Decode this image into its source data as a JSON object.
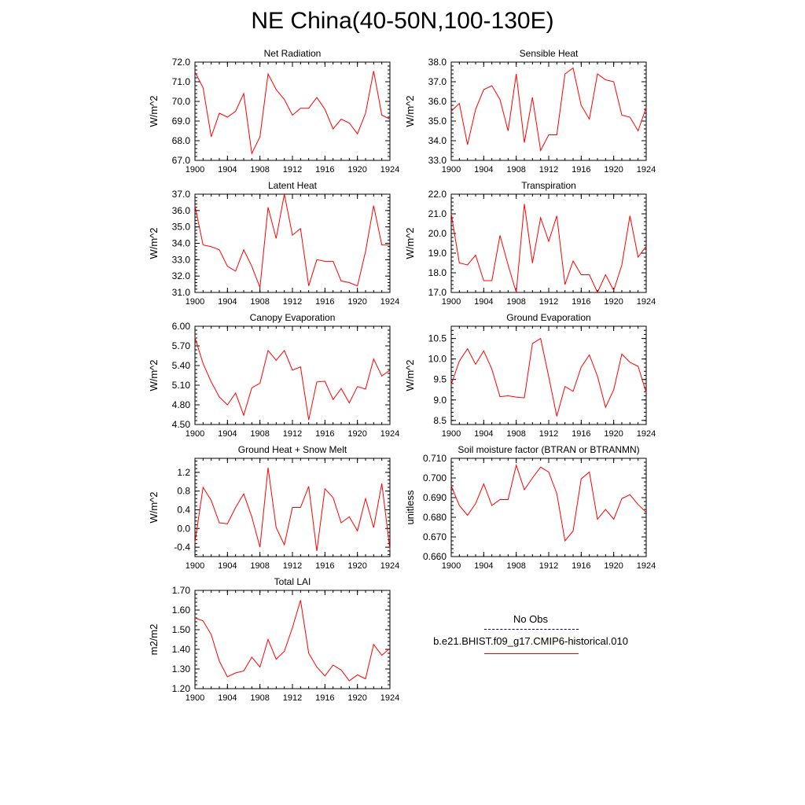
{
  "page_title": "NE China(40-50N,100-130E)",
  "colors": {
    "model_line": "#ff0000",
    "obs_line": "#00007f"
  },
  "legend": {
    "obs_label": "No Obs",
    "model_label": "b.e21.BHIST.f09_g17.CMIP6-historical.010"
  },
  "chart_data": [
    {
      "type": "line",
      "title": "Net Radiation",
      "ylabel": "W/m^2",
      "xlim": [
        1900,
        1924
      ],
      "ylim": [
        67.0,
        72.0
      ],
      "x_ticks": [
        "1900",
        "1904",
        "1908",
        "1912",
        "1916",
        "1920",
        "1924"
      ],
      "y_ticks": [
        "67.0",
        "68.0",
        "69.0",
        "70.0",
        "71.0",
        "72.0"
      ],
      "x": [
        1900,
        1901,
        1902,
        1903,
        1904,
        1905,
        1906,
        1907,
        1908,
        1909,
        1910,
        1911,
        1912,
        1913,
        1914,
        1915,
        1916,
        1917,
        1918,
        1919,
        1920,
        1921,
        1922,
        1923,
        1924
      ],
      "series": [
        {
          "values": [
            71.5,
            70.7,
            68.2,
            69.4,
            69.2,
            69.5,
            70.4,
            67.35,
            68.2,
            71.4,
            70.6,
            70.1,
            69.3,
            69.65,
            69.65,
            70.2,
            69.6,
            68.6,
            69.1,
            68.9,
            68.35,
            69.4,
            71.55,
            69.3,
            69.1
          ]
        }
      ]
    },
    {
      "type": "line",
      "title": "Sensible Heat",
      "ylabel": "W/m^2",
      "xlim": [
        1900,
        1924
      ],
      "ylim": [
        33.0,
        38.0
      ],
      "x_ticks": [
        "1900",
        "1904",
        "1908",
        "1912",
        "1916",
        "1920",
        "1924"
      ],
      "y_ticks": [
        "33.0",
        "34.0",
        "35.0",
        "36.0",
        "37.0",
        "38.0"
      ],
      "x": [
        1900,
        1901,
        1902,
        1903,
        1904,
        1905,
        1906,
        1907,
        1908,
        1909,
        1910,
        1911,
        1912,
        1913,
        1914,
        1915,
        1916,
        1917,
        1918,
        1919,
        1920,
        1921,
        1922,
        1923,
        1924
      ],
      "series": [
        {
          "values": [
            35.5,
            35.9,
            33.8,
            35.6,
            36.6,
            36.8,
            36.1,
            34.5,
            37.4,
            33.9,
            36.2,
            33.5,
            34.3,
            34.3,
            37.4,
            37.7,
            35.8,
            35.1,
            37.4,
            37.1,
            37.0,
            35.3,
            35.2,
            34.5,
            35.7
          ]
        }
      ]
    },
    {
      "type": "line",
      "title": "Latent Heat",
      "ylabel": "W/m^2",
      "xlim": [
        1900,
        1924
      ],
      "ylim": [
        31.0,
        37.0
      ],
      "x_ticks": [
        "1900",
        "1904",
        "1908",
        "1912",
        "1916",
        "1920",
        "1924"
      ],
      "y_ticks": [
        "31.0",
        "32.0",
        "33.0",
        "34.0",
        "35.0",
        "36.0",
        "37.0"
      ],
      "x": [
        1900,
        1901,
        1902,
        1903,
        1904,
        1905,
        1906,
        1907,
        1908,
        1909,
        1910,
        1911,
        1912,
        1913,
        1914,
        1915,
        1916,
        1917,
        1918,
        1919,
        1920,
        1921,
        1922,
        1923,
        1924
      ],
      "series": [
        {
          "values": [
            36.3,
            33.9,
            33.8,
            33.6,
            32.6,
            32.3,
            33.6,
            32.6,
            31.3,
            36.2,
            34.3,
            37.0,
            34.5,
            34.9,
            31.4,
            33.0,
            32.9,
            32.9,
            31.7,
            31.6,
            31.4,
            33.5,
            36.3,
            33.9,
            33.9
          ]
        }
      ]
    },
    {
      "type": "line",
      "title": "Transpiration",
      "ylabel": "W/m^2",
      "xlim": [
        1900,
        1924
      ],
      "ylim": [
        17.0,
        22.0
      ],
      "x_ticks": [
        "1900",
        "1904",
        "1908",
        "1912",
        "1916",
        "1920",
        "1924"
      ],
      "y_ticks": [
        "17.0",
        "18.0",
        "19.0",
        "20.0",
        "21.0",
        "22.0"
      ],
      "x": [
        1900,
        1901,
        1902,
        1903,
        1904,
        1905,
        1906,
        1907,
        1908,
        1909,
        1910,
        1911,
        1912,
        1913,
        1914,
        1915,
        1916,
        1917,
        1918,
        1919,
        1920,
        1921,
        1922,
        1923,
        1924
      ],
      "series": [
        {
          "values": [
            21.0,
            18.5,
            18.4,
            18.9,
            17.6,
            17.6,
            19.9,
            18.4,
            17.0,
            21.5,
            18.5,
            20.8,
            19.6,
            20.9,
            17.4,
            18.6,
            17.9,
            17.9,
            17.0,
            17.9,
            17.1,
            18.4,
            20.9,
            18.8,
            19.35
          ]
        }
      ]
    },
    {
      "type": "line",
      "title": "Canopy Evaporation",
      "ylabel": "W/m^2",
      "xlim": [
        1900,
        1924
      ],
      "ylim": [
        4.5,
        6.0
      ],
      "x_ticks": [
        "1900",
        "1904",
        "1908",
        "1912",
        "1916",
        "1920",
        "1924"
      ],
      "y_ticks": [
        "4.50",
        "4.80",
        "5.10",
        "5.40",
        "5.70",
        "6.00"
      ],
      "x": [
        1900,
        1901,
        1902,
        1903,
        1904,
        1905,
        1906,
        1907,
        1908,
        1909,
        1910,
        1911,
        1912,
        1913,
        1914,
        1915,
        1916,
        1917,
        1918,
        1919,
        1920,
        1921,
        1922,
        1923,
        1924
      ],
      "series": [
        {
          "values": [
            5.83,
            5.43,
            5.15,
            4.92,
            4.8,
            4.98,
            4.64,
            5.06,
            5.13,
            5.63,
            5.48,
            5.63,
            5.33,
            5.38,
            4.57,
            5.15,
            5.16,
            4.88,
            5.05,
            4.83,
            5.08,
            5.04,
            5.5,
            5.24,
            5.33
          ]
        }
      ]
    },
    {
      "type": "line",
      "title": "Ground Evaporation",
      "ylabel": "W/m^2",
      "xlim": [
        1900,
        1924
      ],
      "ylim": [
        8.4,
        10.8
      ],
      "x_ticks": [
        "1900",
        "1904",
        "1908",
        "1912",
        "1916",
        "1920",
        "1924"
      ],
      "y_ticks": [
        "8.5",
        "9.0",
        "9.5",
        "10.0",
        "10.5"
      ],
      "x": [
        1900,
        1901,
        1902,
        1903,
        1904,
        1905,
        1906,
        1907,
        1908,
        1909,
        1910,
        1911,
        1912,
        1913,
        1914,
        1915,
        1916,
        1917,
        1918,
        1919,
        1920,
        1921,
        1922,
        1923,
        1924
      ],
      "series": [
        {
          "values": [
            9.38,
            9.95,
            10.25,
            9.87,
            10.2,
            9.75,
            9.08,
            9.1,
            9.07,
            9.05,
            10.38,
            10.5,
            9.57,
            8.6,
            9.33,
            9.21,
            9.8,
            10.1,
            9.58,
            8.82,
            9.25,
            10.12,
            9.92,
            9.82,
            9.18
          ]
        }
      ]
    },
    {
      "type": "line",
      "title": "Ground Heat + Snow Melt",
      "ylabel": "W/m^2",
      "xlim": [
        1900,
        1924
      ],
      "ylim": [
        -0.6,
        1.5
      ],
      "x_ticks": [
        "1900",
        "1904",
        "1908",
        "1912",
        "1916",
        "1920",
        "1924"
      ],
      "y_ticks": [
        "-0.4",
        "0.0",
        "0.4",
        "0.8",
        "1.2"
      ],
      "x": [
        1900,
        1901,
        1902,
        1903,
        1904,
        1905,
        1906,
        1907,
        1908,
        1909,
        1910,
        1911,
        1912,
        1913,
        1914,
        1915,
        1916,
        1917,
        1918,
        1919,
        1920,
        1921,
        1922,
        1923,
        1924
      ],
      "series": [
        {
          "values": [
            -0.3,
            0.88,
            0.6,
            0.12,
            0.1,
            0.45,
            0.74,
            0.25,
            -0.4,
            1.3,
            0.02,
            -0.35,
            0.45,
            0.45,
            0.9,
            -0.48,
            0.85,
            0.66,
            0.12,
            0.25,
            -0.05,
            0.64,
            0.02,
            0.96,
            -0.45
          ]
        }
      ]
    },
    {
      "type": "line",
      "title": "Soil moisture factor (BTRAN or BTRANMN)",
      "ylabel": "unitless",
      "xlim": [
        1900,
        1924
      ],
      "ylim": [
        0.66,
        0.71
      ],
      "x_ticks": [
        "1900",
        "1904",
        "1908",
        "1912",
        "1916",
        "1920",
        "1924"
      ],
      "y_ticks": [
        "0.660",
        "0.670",
        "0.680",
        "0.690",
        "0.700",
        "0.710"
      ],
      "x": [
        1900,
        1901,
        1902,
        1903,
        1904,
        1905,
        1906,
        1907,
        1908,
        1909,
        1910,
        1911,
        1912,
        1913,
        1914,
        1915,
        1916,
        1917,
        1918,
        1919,
        1920,
        1921,
        1922,
        1923,
        1924
      ],
      "series": [
        {
          "values": [
            0.696,
            0.686,
            0.681,
            0.687,
            0.697,
            0.686,
            0.689,
            0.689,
            0.7065,
            0.694,
            0.7,
            0.7055,
            0.703,
            0.692,
            0.668,
            0.673,
            0.6995,
            0.703,
            0.679,
            0.684,
            0.679,
            0.6895,
            0.6915,
            0.6865,
            0.6825
          ]
        }
      ]
    },
    {
      "type": "line",
      "title": "Total LAI",
      "ylabel": "m2/m2",
      "xlim": [
        1900,
        1924
      ],
      "ylim": [
        1.2,
        1.7
      ],
      "x_ticks": [
        "1900",
        "1904",
        "1908",
        "1912",
        "1916",
        "1920",
        "1924"
      ],
      "y_ticks": [
        "1.20",
        "1.30",
        "1.40",
        "1.50",
        "1.60",
        "1.70"
      ],
      "x": [
        1900,
        1901,
        1902,
        1903,
        1904,
        1905,
        1906,
        1907,
        1908,
        1909,
        1910,
        1911,
        1912,
        1913,
        1914,
        1915,
        1916,
        1917,
        1918,
        1919,
        1920,
        1921,
        1922,
        1923,
        1924
      ],
      "series": [
        {
          "values": [
            1.56,
            1.545,
            1.475,
            1.34,
            1.26,
            1.28,
            1.29,
            1.36,
            1.31,
            1.45,
            1.35,
            1.39,
            1.51,
            1.65,
            1.38,
            1.31,
            1.265,
            1.32,
            1.295,
            1.24,
            1.27,
            1.25,
            1.425,
            1.37,
            1.405
          ]
        }
      ]
    }
  ]
}
